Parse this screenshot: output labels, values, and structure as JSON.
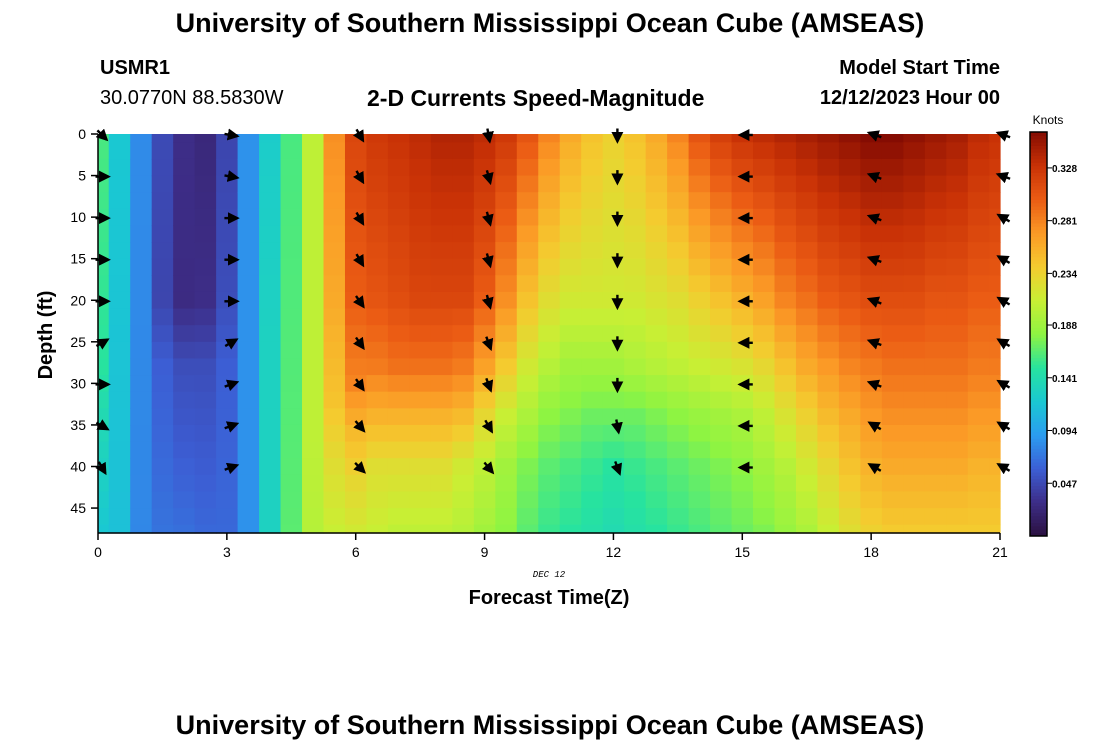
{
  "header": {
    "title": "University of Southern Mississippi Ocean Cube (AMSEAS)",
    "station_id": "USMR1",
    "station_coords": "30.0770N  88.5830W",
    "subtitle": "2-D Currents Speed-Magnitude",
    "model_start_label": "Model Start Time",
    "model_start_value": "12/12/2023 Hour 00"
  },
  "footer": {
    "title": "University of Southern Mississippi Ocean Cube (AMSEAS)"
  },
  "colors": {
    "colormap": [
      "#2a0f3e",
      "#3d2d87",
      "#3c5ed4",
      "#2b9cf0",
      "#1ac8d2",
      "#27e39f",
      "#8ef442",
      "#c8ef34",
      "#f4cb2f",
      "#fb9a26",
      "#eb5c14",
      "#c93206",
      "#850c02"
    ],
    "arrow": "#000000",
    "axis": "#000000"
  },
  "chart_data": {
    "type": "heatmap",
    "title": "2-D Currents Speed-Magnitude",
    "xlabel": "Forecast Time(Z)",
    "ylabel": "Depth (ft)",
    "date_label": "DEC 12",
    "xlim": [
      0,
      21
    ],
    "ylim": [
      0,
      48
    ],
    "xticks": [
      0,
      3,
      6,
      9,
      12,
      15,
      18,
      21
    ],
    "yticks": [
      0,
      5,
      10,
      15,
      20,
      25,
      30,
      35,
      40,
      45
    ],
    "colorbar": {
      "label": "Knots",
      "range": [
        0.0,
        0.36
      ],
      "ticks": [
        0.047,
        0.094,
        0.141,
        0.188,
        0.234,
        0.281,
        0.328
      ]
    },
    "time_hours": [
      0,
      0.5,
      1,
      1.5,
      2,
      2.5,
      3,
      3.5,
      4,
      4.5,
      5,
      5.5,
      6,
      6.5,
      7,
      7.5,
      8,
      8.5,
      9,
      9.5,
      10,
      10.5,
      11,
      11.5,
      12,
      12.5,
      13,
      13.5,
      14,
      14.5,
      15,
      15.5,
      16,
      16.5,
      17,
      17.5,
      18,
      18.5,
      19,
      19.5,
      20,
      20.5,
      21
    ],
    "depth_ft": [
      0,
      2,
      4,
      6,
      8,
      10,
      12,
      14,
      16,
      18,
      20,
      22,
      24,
      26,
      28,
      30,
      32,
      34,
      36,
      38,
      40,
      42,
      44,
      46,
      48
    ],
    "speed_profiles": [
      {
        "time": 0,
        "depth": [
          0,
          28,
          36,
          48
        ],
        "speed": [
          0.16,
          0.15,
          0.135,
          0.12
        ]
      },
      {
        "time": 0.5,
        "depth": [
          0,
          48
        ],
        "speed": [
          0.12,
          0.115
        ]
      },
      {
        "time": 1,
        "depth": [
          0,
          48
        ],
        "speed": [
          0.082,
          0.08
        ]
      },
      {
        "time": 1.5,
        "depth": [
          0,
          20,
          28,
          48
        ],
        "speed": [
          0.048,
          0.045,
          0.06,
          0.07
        ]
      },
      {
        "time": 2,
        "depth": [
          0,
          20,
          28,
          48
        ],
        "speed": [
          0.03,
          0.028,
          0.05,
          0.068
        ]
      },
      {
        "time": 2.5,
        "depth": [
          0,
          20,
          28,
          48
        ],
        "speed": [
          0.025,
          0.03,
          0.05,
          0.065
        ]
      },
      {
        "time": 3,
        "depth": [
          0,
          20,
          28,
          48
        ],
        "speed": [
          0.045,
          0.05,
          0.06,
          0.065
        ]
      },
      {
        "time": 3.5,
        "depth": [
          0,
          48
        ],
        "speed": [
          0.085,
          0.085
        ]
      },
      {
        "time": 4,
        "depth": [
          0,
          25,
          48
        ],
        "speed": [
          0.125,
          0.13,
          0.13
        ]
      },
      {
        "time": 4.5,
        "depth": [
          0,
          48
        ],
        "speed": [
          0.16,
          0.165
        ]
      },
      {
        "time": 5,
        "depth": [
          0,
          36,
          48
        ],
        "speed": [
          0.205,
          0.205,
          0.2
        ]
      },
      {
        "time": 5.5,
        "depth": [
          0,
          20,
          32,
          40,
          48
        ],
        "speed": [
          0.275,
          0.26,
          0.245,
          0.225,
          0.21
        ]
      },
      {
        "time": 6,
        "depth": [
          0,
          20,
          30,
          36,
          42,
          48
        ],
        "speed": [
          0.315,
          0.3,
          0.28,
          0.25,
          0.23,
          0.215
        ]
      },
      {
        "time": 6.5,
        "depth": [
          0,
          20,
          28,
          34,
          40,
          48
        ],
        "speed": [
          0.325,
          0.305,
          0.285,
          0.255,
          0.225,
          0.21
        ]
      },
      {
        "time": 7,
        "depth": [
          0,
          20,
          28,
          34,
          40,
          48
        ],
        "speed": [
          0.33,
          0.31,
          0.29,
          0.255,
          0.225,
          0.205
        ]
      },
      {
        "time": 7.5,
        "depth": [
          0,
          20,
          28,
          34,
          40,
          48
        ],
        "speed": [
          0.335,
          0.315,
          0.29,
          0.255,
          0.225,
          0.205
        ]
      },
      {
        "time": 8,
        "depth": [
          0,
          20,
          28,
          34,
          40,
          48
        ],
        "speed": [
          0.34,
          0.315,
          0.29,
          0.255,
          0.225,
          0.205
        ]
      },
      {
        "time": 8.5,
        "depth": [
          0,
          20,
          28,
          34,
          40,
          48
        ],
        "speed": [
          0.34,
          0.315,
          0.285,
          0.25,
          0.215,
          0.2
        ]
      },
      {
        "time": 9,
        "depth": [
          0,
          20,
          28,
          34,
          40,
          48
        ],
        "speed": [
          0.335,
          0.3,
          0.265,
          0.23,
          0.205,
          0.19
        ]
      },
      {
        "time": 9.5,
        "depth": [
          0,
          20,
          28,
          34,
          40,
          48
        ],
        "speed": [
          0.325,
          0.275,
          0.24,
          0.21,
          0.19,
          0.18
        ]
      },
      {
        "time": 10,
        "depth": [
          0,
          20,
          28,
          34,
          40,
          48
        ],
        "speed": [
          0.305,
          0.245,
          0.215,
          0.195,
          0.175,
          0.165
        ]
      },
      {
        "time": 10.5,
        "depth": [
          0,
          20,
          28,
          34,
          40,
          48
        ],
        "speed": [
          0.28,
          0.225,
          0.2,
          0.18,
          0.165,
          0.155
        ]
      },
      {
        "time": 11,
        "depth": [
          0,
          20,
          28,
          34,
          40,
          48
        ],
        "speed": [
          0.26,
          0.215,
          0.19,
          0.175,
          0.16,
          0.15
        ]
      },
      {
        "time": 11.5,
        "depth": [
          0,
          20,
          28,
          34,
          40,
          48
        ],
        "speed": [
          0.245,
          0.215,
          0.19,
          0.17,
          0.155,
          0.145
        ]
      },
      {
        "time": 12,
        "depth": [
          0,
          20,
          28,
          34,
          40,
          48
        ],
        "speed": [
          0.235,
          0.215,
          0.19,
          0.17,
          0.15,
          0.14
        ]
      },
      {
        "time": 12.5,
        "depth": [
          0,
          20,
          28,
          34,
          40,
          48
        ],
        "speed": [
          0.245,
          0.215,
          0.195,
          0.17,
          0.155,
          0.145
        ]
      },
      {
        "time": 13,
        "depth": [
          0,
          20,
          28,
          34,
          40,
          48
        ],
        "speed": [
          0.26,
          0.22,
          0.2,
          0.175,
          0.16,
          0.15
        ]
      },
      {
        "time": 13.5,
        "depth": [
          0,
          20,
          28,
          34,
          40,
          48
        ],
        "speed": [
          0.28,
          0.225,
          0.205,
          0.18,
          0.165,
          0.155
        ]
      },
      {
        "time": 14,
        "depth": [
          0,
          20,
          28,
          34,
          40,
          48
        ],
        "speed": [
          0.305,
          0.235,
          0.21,
          0.185,
          0.17,
          0.16
        ]
      },
      {
        "time": 14.5,
        "depth": [
          0,
          20,
          28,
          34,
          40,
          48
        ],
        "speed": [
          0.32,
          0.245,
          0.215,
          0.19,
          0.175,
          0.165
        ]
      },
      {
        "time": 15,
        "depth": [
          0,
          20,
          28,
          34,
          40,
          48
        ],
        "speed": [
          0.33,
          0.255,
          0.22,
          0.195,
          0.18,
          0.17
        ]
      },
      {
        "time": 15.5,
        "depth": [
          0,
          20,
          28,
          34,
          40,
          48
        ],
        "speed": [
          0.335,
          0.265,
          0.23,
          0.205,
          0.19,
          0.175
        ]
      },
      {
        "time": 16,
        "depth": [
          0,
          20,
          28,
          34,
          40,
          48
        ],
        "speed": [
          0.34,
          0.28,
          0.245,
          0.22,
          0.2,
          0.185
        ]
      },
      {
        "time": 16.5,
        "depth": [
          0,
          20,
          28,
          34,
          40,
          48
        ],
        "speed": [
          0.345,
          0.29,
          0.26,
          0.235,
          0.215,
          0.195
        ]
      },
      {
        "time": 17,
        "depth": [
          0,
          20,
          28,
          34,
          40,
          48
        ],
        "speed": [
          0.35,
          0.3,
          0.27,
          0.25,
          0.23,
          0.21
        ]
      },
      {
        "time": 17.5,
        "depth": [
          0,
          20,
          28,
          34,
          40,
          48
        ],
        "speed": [
          0.355,
          0.305,
          0.28,
          0.26,
          0.245,
          0.225
        ]
      },
      {
        "time": 18,
        "depth": [
          0,
          20,
          28,
          34,
          40,
          48
        ],
        "speed": [
          0.36,
          0.31,
          0.285,
          0.27,
          0.255,
          0.235
        ]
      },
      {
        "time": 18.5,
        "depth": [
          0,
          20,
          28,
          34,
          40,
          48
        ],
        "speed": [
          0.36,
          0.31,
          0.29,
          0.275,
          0.26,
          0.24
        ]
      },
      {
        "time": 19,
        "depth": [
          0,
          20,
          28,
          34,
          40,
          48
        ],
        "speed": [
          0.355,
          0.31,
          0.29,
          0.275,
          0.26,
          0.24
        ]
      },
      {
        "time": 19.5,
        "depth": [
          0,
          20,
          28,
          34,
          40,
          48
        ],
        "speed": [
          0.35,
          0.305,
          0.29,
          0.275,
          0.26,
          0.24
        ]
      },
      {
        "time": 20,
        "depth": [
          0,
          20,
          28,
          34,
          40,
          48
        ],
        "speed": [
          0.345,
          0.305,
          0.29,
          0.275,
          0.26,
          0.24
        ]
      },
      {
        "time": 20.5,
        "depth": [
          0,
          20,
          28,
          34,
          40,
          48
        ],
        "speed": [
          0.335,
          0.3,
          0.285,
          0.27,
          0.255,
          0.24
        ]
      },
      {
        "time": 21,
        "depth": [
          0,
          20,
          28,
          34,
          40,
          48
        ],
        "speed": [
          0.33,
          0.3,
          0.285,
          0.27,
          0.255,
          0.24
        ]
      }
    ],
    "vectors": {
      "times": [
        0,
        3,
        6,
        9,
        12,
        15,
        18,
        21
      ],
      "depths": [
        0,
        5,
        10,
        15,
        20,
        25,
        30,
        35,
        40
      ],
      "direction_deg": [
        [
          135,
          90,
          90,
          90,
          90,
          60,
          90,
          120,
          150
        ],
        [
          100,
          100,
          90,
          90,
          90,
          60,
          70,
          70,
          70
        ],
        [
          150,
          150,
          150,
          150,
          145,
          145,
          145,
          140,
          135
        ],
        [
          170,
          165,
          165,
          165,
          165,
          160,
          160,
          150,
          140
        ],
        [
          180,
          180,
          180,
          180,
          180,
          180,
          180,
          170,
          160
        ],
        [
          270,
          270,
          270,
          270,
          270,
          270,
          270,
          270,
          270
        ],
        [
          290,
          290,
          290,
          290,
          290,
          290,
          290,
          300,
          300
        ],
        [
          290,
          290,
          300,
          300,
          300,
          300,
          300,
          300,
          300
        ]
      ]
    }
  }
}
